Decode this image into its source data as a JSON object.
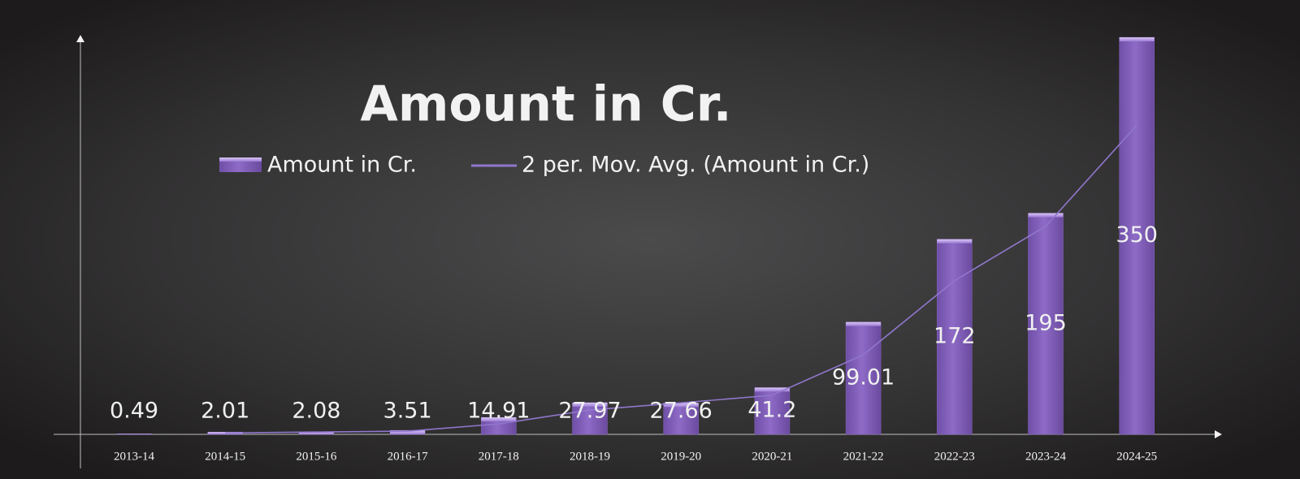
{
  "chart_data": {
    "type": "bar",
    "title": "Amount in Cr.",
    "categories": [
      "2013-14",
      "2014-15",
      "2015-16",
      "2016-17",
      "2017-18",
      "2018-19",
      "2019-20",
      "2020-21",
      "2021-22",
      "2022-23",
      "2023-24",
      "2024-25"
    ],
    "series": [
      {
        "name": "Amount in Cr.",
        "type": "bar",
        "color": "#8a66c2",
        "values": [
          0.49,
          2.01,
          2.08,
          3.51,
          14.91,
          27.97,
          27.66,
          41.2,
          99.01,
          172,
          195,
          350
        ]
      },
      {
        "name": "2 per. Mov. Avg. (Amount in Cr.)",
        "type": "line",
        "color": "#9077cc",
        "values": [
          null,
          1.25,
          2.045,
          2.795,
          9.21,
          21.44,
          27.815,
          34.43,
          70.105,
          135.505,
          183.5,
          272.5
        ]
      }
    ],
    "ylim": [
      0,
      350
    ]
  }
}
